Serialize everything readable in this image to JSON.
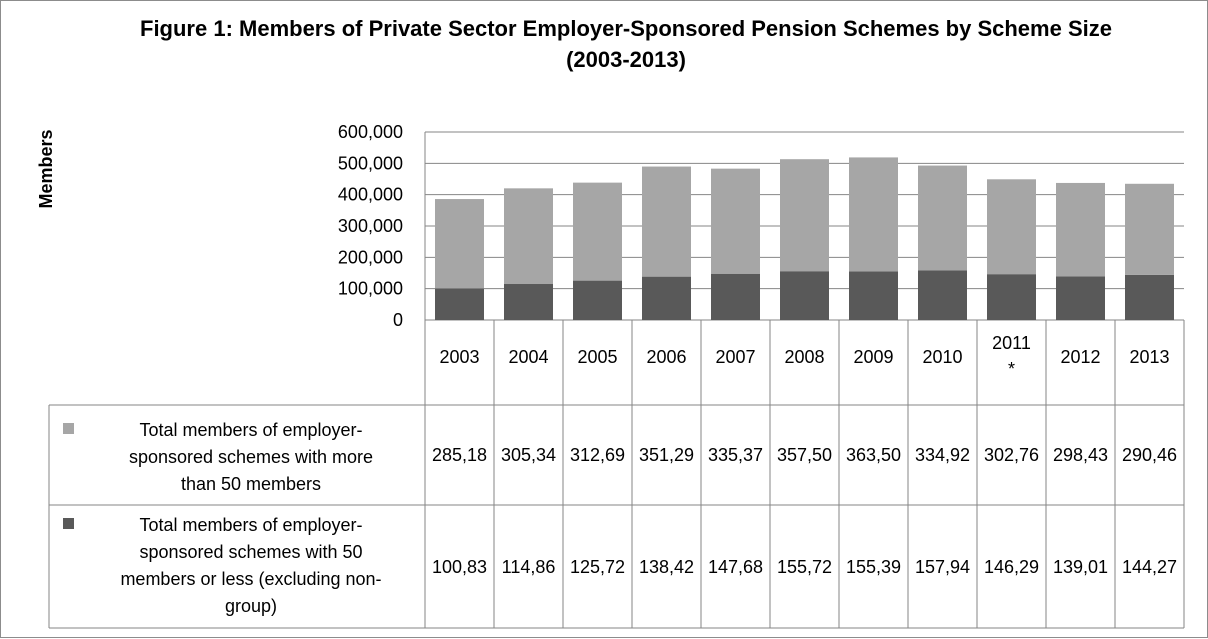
{
  "chart_data": {
    "type": "bar",
    "stacked": true,
    "title": "Figure 1:  Members of Private Sector Employer-Sponsored Pension Schemes by Scheme Size (2003-2013)",
    "ylabel": "Members",
    "ylim": [
      0,
      600000
    ],
    "yticks": [
      "0",
      "100,000",
      "200,000",
      "300,000",
      "400,000",
      "500,000",
      "600,000"
    ],
    "grid": true,
    "legend_position": "data table",
    "categories": [
      "2003",
      "2004",
      "2005",
      "2006",
      "2007",
      "2008",
      "2009",
      "2010",
      "2011 *",
      "2012",
      "2013"
    ],
    "series": [
      {
        "name": "Total members of employer-sponsored schemes with 50 members or less (excluding non-group)",
        "color": "#595959",
        "values": [
          100830,
          114860,
          125720,
          138420,
          147680,
          155720,
          155390,
          157940,
          146290,
          139010,
          144270
        ],
        "table_labels": [
          "100,83",
          "114,86",
          "125,72",
          "138,42",
          "147,68",
          "155,72",
          "155,39",
          "157,94",
          "146,29",
          "139,01",
          "144,27"
        ]
      },
      {
        "name": "Total members of employer-sponsored schemes with more than 50 members",
        "color": "#a6a6a6",
        "values": [
          285180,
          305340,
          312690,
          351290,
          335370,
          357500,
          363500,
          334920,
          302760,
          298430,
          290460
        ],
        "table_labels": [
          "285,18",
          "305,34",
          "312,69",
          "351,29",
          "335,37",
          "357,50",
          "363,50",
          "334,92",
          "302,76",
          "298,43",
          "290,46"
        ]
      }
    ],
    "legend_lines": {
      "more": [
        "Total members of employer-",
        "sponsored schemes with more",
        "than 50 members"
      ],
      "less": [
        "Total members of employer-",
        "sponsored schemes with 50",
        "members or less (excluding non-",
        "group)"
      ]
    }
  }
}
